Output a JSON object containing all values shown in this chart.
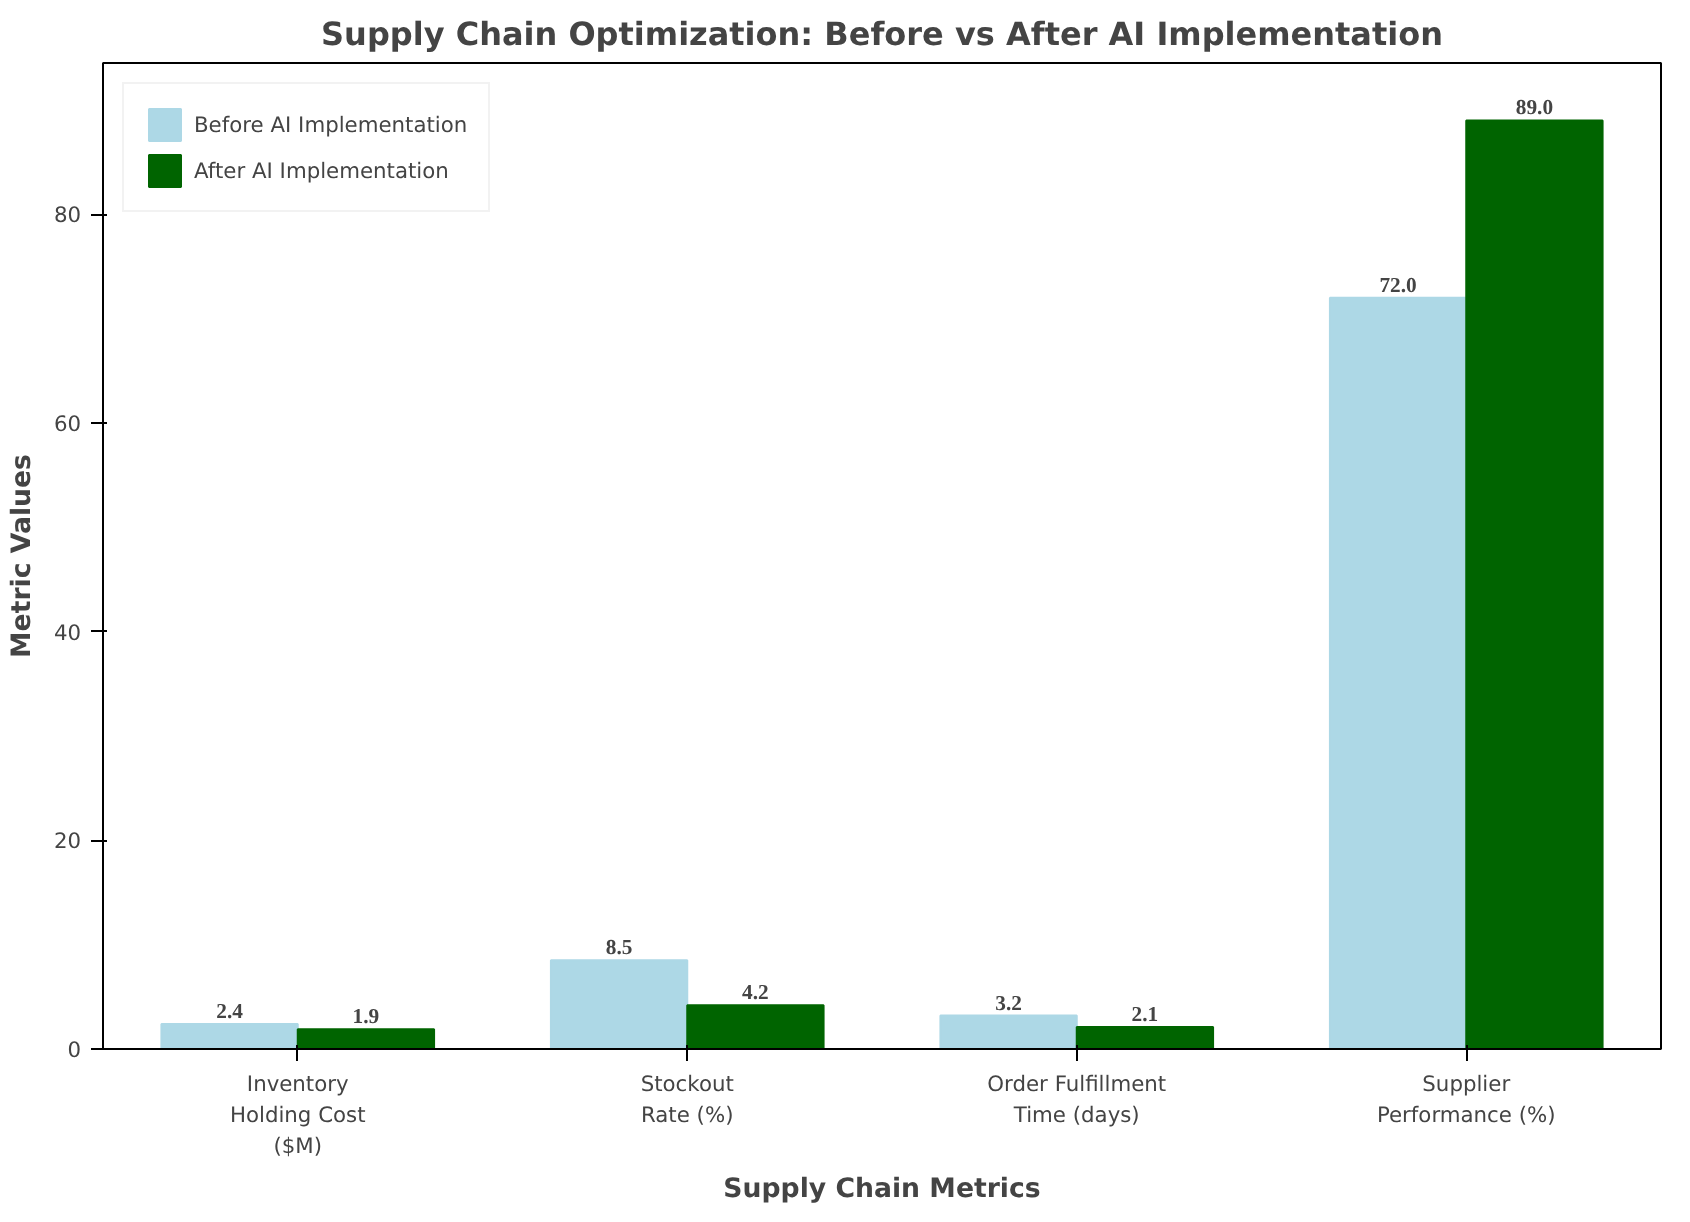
{
  "chart_data": {
    "type": "bar",
    "title": "Supply Chain Optimization: Before vs After AI Implementation",
    "xlabel": "Supply Chain Metrics",
    "ylabel": "Metric Values",
    "categories": [
      "Inventory\nHolding Cost\n($M)",
      "Stockout\nRate (%)",
      "Order Fulfillment\nTime (days)",
      "Supplier\nPerformance (%)"
    ],
    "series": [
      {
        "name": "Before AI Implementation",
        "color": "#add8e6",
        "values": [
          2.4,
          8.5,
          3.2,
          72.0
        ],
        "value_labels": [
          "2.4",
          "8.5",
          "3.2",
          "72.0"
        ]
      },
      {
        "name": "After AI Implementation",
        "color": "#006400",
        "values": [
          1.9,
          4.2,
          2.1,
          89.0
        ],
        "value_labels": [
          "1.9",
          "4.2",
          "2.1",
          "89.0"
        ]
      }
    ],
    "ylim": [
      0,
      94.5
    ],
    "yticks": [
      0,
      20,
      40,
      60,
      80
    ],
    "legend": "top left"
  }
}
